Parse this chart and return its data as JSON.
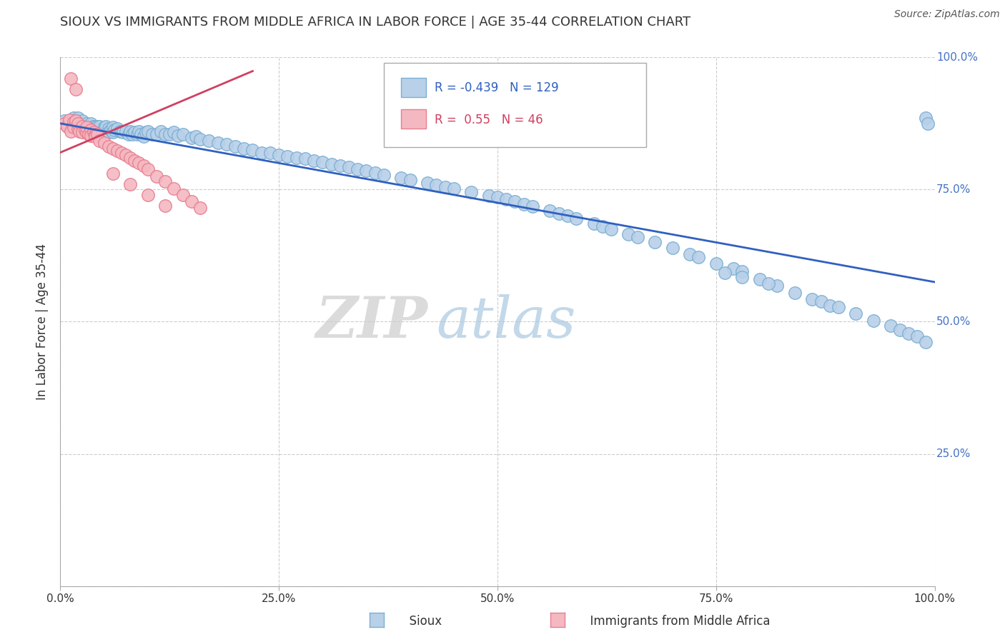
{
  "title": "SIOUX VS IMMIGRANTS FROM MIDDLE AFRICA IN LABOR FORCE | AGE 35-44 CORRELATION CHART",
  "source_text": "Source: ZipAtlas.com",
  "ylabel": "In Labor Force | Age 35-44",
  "blue_r": -0.439,
  "blue_n": 129,
  "pink_r": 0.55,
  "pink_n": 46,
  "blue_color": "#b8d0e8",
  "blue_edge_color": "#7aafd4",
  "pink_color": "#f4b8c1",
  "pink_edge_color": "#e87d8f",
  "blue_line_color": "#3060c0",
  "pink_line_color": "#d04060",
  "watermark_zip": "ZIP",
  "watermark_atlas": "atlas",
  "xlim": [
    0.0,
    1.0
  ],
  "ylim": [
    0.0,
    1.0
  ],
  "blue_scatter_x": [
    0.005,
    0.008,
    0.01,
    0.012,
    0.015,
    0.015,
    0.018,
    0.02,
    0.02,
    0.022,
    0.025,
    0.025,
    0.028,
    0.03,
    0.03,
    0.032,
    0.035,
    0.035,
    0.038,
    0.04,
    0.04,
    0.042,
    0.045,
    0.045,
    0.048,
    0.05,
    0.05,
    0.052,
    0.055,
    0.055,
    0.058,
    0.06,
    0.06,
    0.062,
    0.065,
    0.068,
    0.07,
    0.072,
    0.075,
    0.078,
    0.08,
    0.082,
    0.085,
    0.088,
    0.09,
    0.092,
    0.095,
    0.098,
    0.1,
    0.105,
    0.11,
    0.115,
    0.12,
    0.125,
    0.13,
    0.135,
    0.14,
    0.15,
    0.155,
    0.16,
    0.17,
    0.18,
    0.19,
    0.2,
    0.21,
    0.22,
    0.23,
    0.24,
    0.25,
    0.26,
    0.27,
    0.28,
    0.29,
    0.3,
    0.31,
    0.32,
    0.33,
    0.34,
    0.35,
    0.36,
    0.37,
    0.39,
    0.4,
    0.42,
    0.43,
    0.44,
    0.45,
    0.47,
    0.49,
    0.5,
    0.51,
    0.52,
    0.53,
    0.54,
    0.56,
    0.57,
    0.58,
    0.59,
    0.61,
    0.62,
    0.63,
    0.65,
    0.66,
    0.68,
    0.7,
    0.72,
    0.73,
    0.75,
    0.77,
    0.78,
    0.8,
    0.82,
    0.84,
    0.86,
    0.87,
    0.88,
    0.89,
    0.91,
    0.93,
    0.95,
    0.96,
    0.97,
    0.98,
    0.99,
    0.99,
    0.992,
    0.76,
    0.78,
    0.81
  ],
  "blue_scatter_y": [
    0.88,
    0.87,
    0.88,
    0.87,
    0.885,
    0.875,
    0.88,
    0.87,
    0.885,
    0.875,
    0.87,
    0.88,
    0.87,
    0.875,
    0.865,
    0.87,
    0.875,
    0.865,
    0.87,
    0.87,
    0.865,
    0.87,
    0.865,
    0.87,
    0.86,
    0.868,
    0.862,
    0.87,
    0.865,
    0.858,
    0.862,
    0.868,
    0.858,
    0.862,
    0.865,
    0.86,
    0.86,
    0.858,
    0.86,
    0.855,
    0.86,
    0.855,
    0.858,
    0.855,
    0.86,
    0.855,
    0.85,
    0.858,
    0.86,
    0.855,
    0.855,
    0.86,
    0.855,
    0.855,
    0.858,
    0.852,
    0.855,
    0.848,
    0.85,
    0.845,
    0.842,
    0.838,
    0.835,
    0.832,
    0.828,
    0.825,
    0.82,
    0.82,
    0.815,
    0.812,
    0.81,
    0.808,
    0.805,
    0.802,
    0.798,
    0.795,
    0.792,
    0.788,
    0.785,
    0.782,
    0.778,
    0.772,
    0.768,
    0.762,
    0.758,
    0.755,
    0.752,
    0.745,
    0.738,
    0.735,
    0.732,
    0.728,
    0.722,
    0.718,
    0.71,
    0.705,
    0.7,
    0.695,
    0.685,
    0.68,
    0.675,
    0.665,
    0.66,
    0.65,
    0.64,
    0.628,
    0.622,
    0.61,
    0.6,
    0.595,
    0.58,
    0.568,
    0.555,
    0.542,
    0.538,
    0.53,
    0.528,
    0.515,
    0.502,
    0.492,
    0.485,
    0.478,
    0.472,
    0.462,
    0.885,
    0.875,
    0.592,
    0.585,
    0.572
  ],
  "pink_scatter_x": [
    0.005,
    0.008,
    0.01,
    0.012,
    0.015,
    0.015,
    0.018,
    0.02,
    0.02,
    0.022,
    0.025,
    0.025,
    0.028,
    0.03,
    0.03,
    0.032,
    0.035,
    0.035,
    0.038,
    0.04,
    0.04,
    0.042,
    0.045,
    0.05,
    0.055,
    0.06,
    0.065,
    0.07,
    0.075,
    0.08,
    0.085,
    0.09,
    0.095,
    0.1,
    0.11,
    0.12,
    0.13,
    0.14,
    0.15,
    0.16,
    0.012,
    0.018,
    0.06,
    0.08,
    0.1,
    0.12
  ],
  "pink_scatter_y": [
    0.875,
    0.87,
    0.882,
    0.86,
    0.878,
    0.868,
    0.88,
    0.865,
    0.875,
    0.86,
    0.87,
    0.858,
    0.862,
    0.858,
    0.868,
    0.855,
    0.862,
    0.852,
    0.858,
    0.855,
    0.85,
    0.855,
    0.842,
    0.838,
    0.832,
    0.828,
    0.824,
    0.82,
    0.815,
    0.81,
    0.805,
    0.8,
    0.795,
    0.788,
    0.775,
    0.765,
    0.752,
    0.74,
    0.728,
    0.715,
    0.96,
    0.94,
    0.78,
    0.76,
    0.74,
    0.72
  ]
}
